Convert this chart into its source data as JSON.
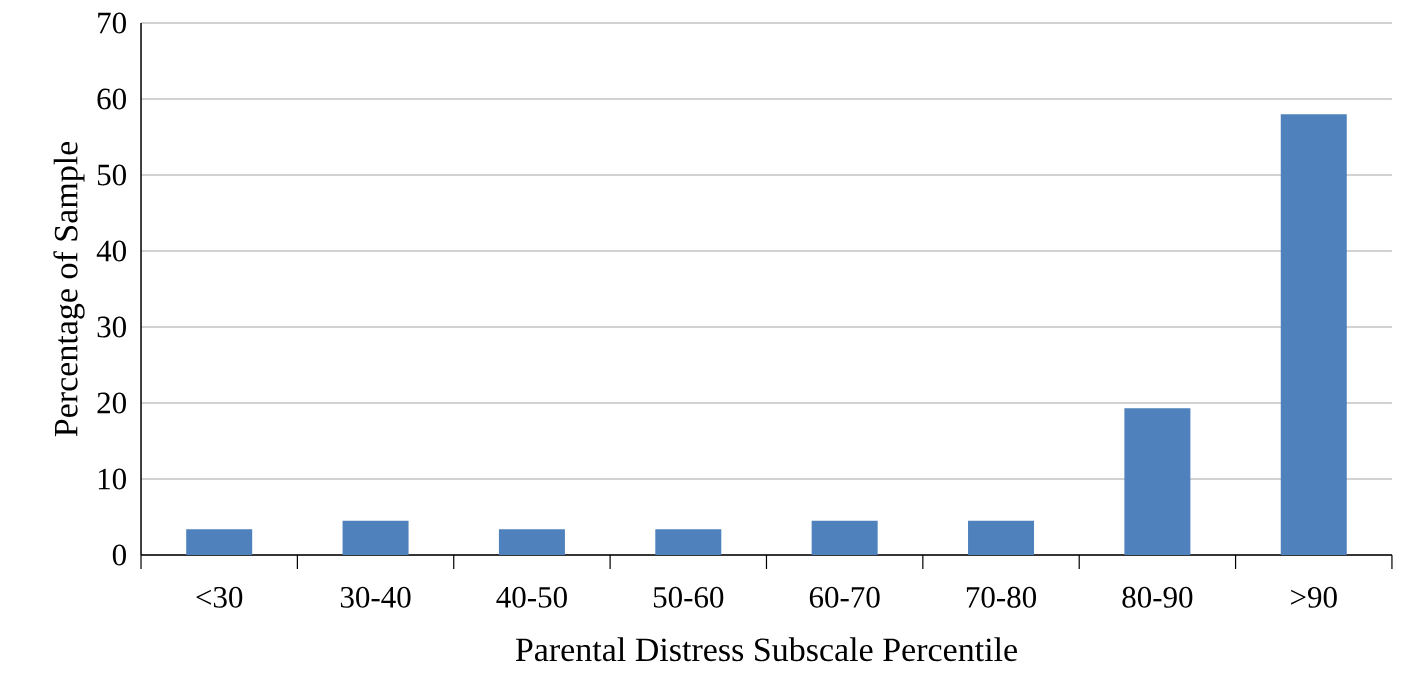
{
  "chart_data": {
    "type": "bar",
    "xlabel": "Parental Distress Subscale Percentile",
    "ylabel": "Percentage of Sample",
    "categories": [
      "<30",
      "30-40",
      "40-50",
      "50-60",
      "60-70",
      "70-80",
      "80-90",
      ">90"
    ],
    "values": [
      3.4,
      4.5,
      3.4,
      3.4,
      4.5,
      4.5,
      19.3,
      58
    ],
    "color": "#4f81bd",
    "ylim": [
      0,
      70
    ],
    "yticks": [
      0,
      10,
      20,
      30,
      40,
      50,
      60,
      70
    ],
    "grid": "y"
  }
}
